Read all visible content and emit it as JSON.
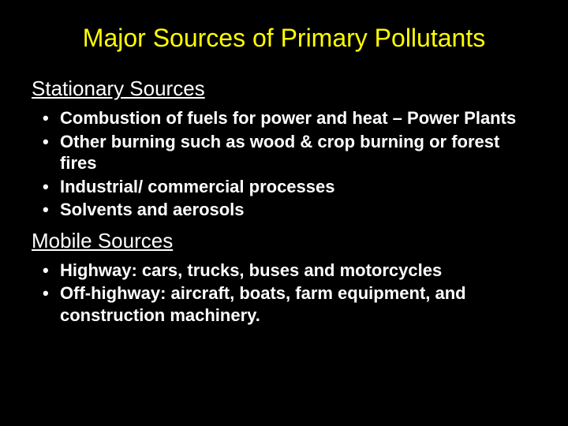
{
  "colors": {
    "background": "#000000",
    "title": "#ffff00",
    "body_text": "#ffffff"
  },
  "typography": {
    "title_fontsize": 32,
    "section_header_fontsize": 26,
    "bullet_fontsize": 22,
    "bullet_weight": "bold",
    "font_family": "Arial"
  },
  "title": "Major Sources of Primary Pollutants",
  "sections": [
    {
      "header": "Stationary Sources",
      "bullets": [
        "Combustion of fuels for power and heat – Power Plants",
        "Other burning such as wood & crop burning or forest fires",
        "Industrial/ commercial processes",
        "Solvents and aerosols"
      ]
    },
    {
      "header": "Mobile Sources",
      "bullets": [
        "Highway: cars, trucks, buses and motorcycles",
        "Off-highway: aircraft, boats, farm equipment, and construction machinery."
      ]
    }
  ]
}
